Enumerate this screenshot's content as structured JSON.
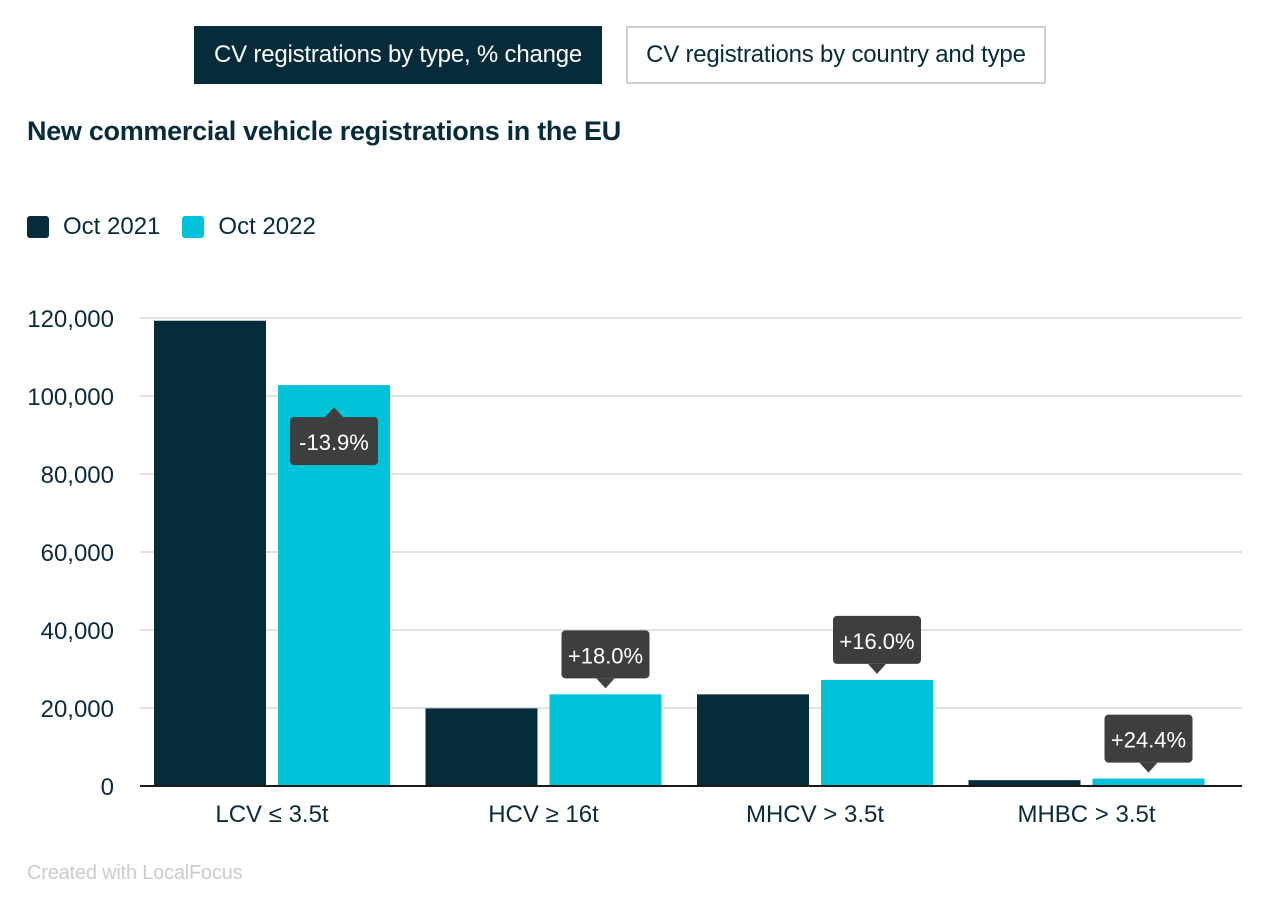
{
  "tabs": [
    {
      "label": "CV registrations by type, % change",
      "active": true
    },
    {
      "label": "CV registrations by country and type",
      "active": false
    }
  ],
  "credit": "Created with LocalFocus",
  "colors": {
    "oct2021": "#062c3b",
    "oct2022": "#00c2d8",
    "tooltip": "#3e3e3e",
    "grid": "#d9d9d9",
    "axis": "#1a1a1a"
  },
  "chart_data": {
    "type": "bar",
    "title": "New commercial vehicle registrations in the EU",
    "categories": [
      "LCV ≤ 3.5t",
      "HCV ≥ 16t",
      "MHCV > 3.5t",
      "MHBC > 3.5t"
    ],
    "series": [
      {
        "name": "Oct 2021",
        "values": [
          119300,
          19900,
          23500,
          1500
        ]
      },
      {
        "name": "Oct 2022",
        "values": [
          102800,
          23500,
          27200,
          1900
        ]
      }
    ],
    "annotations": [
      "-13.9%",
      "+18.0%",
      "+16.0%",
      "+24.4%"
    ],
    "ylim": [
      0,
      120000
    ],
    "yticks": [
      0,
      20000,
      40000,
      60000,
      80000,
      100000,
      120000
    ],
    "ytick_labels": [
      "0",
      "20,000",
      "40,000",
      "60,000",
      "80,000",
      "100,000",
      "120,000"
    ],
    "grid": true,
    "legend": "top-left"
  }
}
